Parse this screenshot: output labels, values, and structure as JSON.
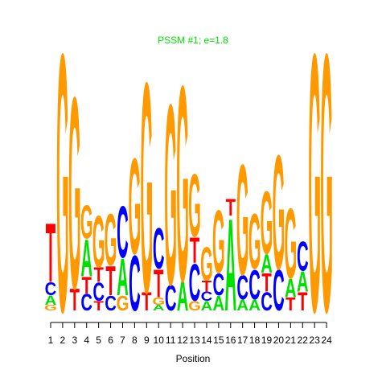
{
  "chart_data": {
    "type": "sequence-logo",
    "title": "PSSM #1; e=1.8",
    "xlabel": "Position",
    "ylabel": "",
    "x": [
      1,
      2,
      3,
      4,
      5,
      6,
      7,
      8,
      9,
      10,
      11,
      12,
      13,
      14,
      15,
      16,
      17,
      18,
      19,
      20,
      21,
      22,
      23,
      24
    ],
    "colors": {
      "A": "#00e000",
      "C": "#0000ff",
      "G": "#ff9900",
      "T": "#ff0000",
      "title": "#00e000"
    },
    "positions": [
      {
        "pos": 1,
        "letters": [
          {
            "b": "G",
            "h": 0.15
          },
          {
            "b": "A",
            "h": 0.25
          },
          {
            "b": "C",
            "h": 0.35
          },
          {
            "b": "T",
            "h": 1.6
          }
        ]
      },
      {
        "pos": 2,
        "letters": [
          {
            "b": "G",
            "h": 7.0
          }
        ]
      },
      {
        "pos": 3,
        "letters": [
          {
            "b": "T",
            "h": 0.6
          },
          {
            "b": "G",
            "h": 5.2
          }
        ]
      },
      {
        "pos": 4,
        "letters": [
          {
            "b": "C",
            "h": 0.45
          },
          {
            "b": "T",
            "h": 0.45
          },
          {
            "b": "A",
            "h": 1.0
          },
          {
            "b": "G",
            "h": 0.9
          }
        ]
      },
      {
        "pos": 5,
        "letters": [
          {
            "b": "T",
            "h": 0.25
          },
          {
            "b": "C",
            "h": 0.5
          },
          {
            "b": "T",
            "h": 0.4
          },
          {
            "b": "G",
            "h": 1.4
          }
        ]
      },
      {
        "pos": 6,
        "letters": [
          {
            "b": "C",
            "h": 0.4
          },
          {
            "b": "T",
            "h": 0.8
          },
          {
            "b": "G",
            "h": 1.4
          }
        ]
      },
      {
        "pos": 7,
        "letters": [
          {
            "b": "G",
            "h": 0.4
          },
          {
            "b": "A",
            "h": 1.0
          },
          {
            "b": "C",
            "h": 1.4
          }
        ]
      },
      {
        "pos": 8,
        "letters": [
          {
            "b": "C",
            "h": 1.5
          },
          {
            "b": "G",
            "h": 2.6
          }
        ]
      },
      {
        "pos": 9,
        "letters": [
          {
            "b": "T",
            "h": 0.5
          },
          {
            "b": "G",
            "h": 5.7
          }
        ]
      },
      {
        "pos": 10,
        "letters": [
          {
            "b": "A",
            "h": 0.15
          },
          {
            "b": "G",
            "h": 0.2
          },
          {
            "b": "T",
            "h": 0.75
          },
          {
            "b": "C",
            "h": 1.1
          }
        ]
      },
      {
        "pos": 11,
        "letters": [
          {
            "b": "C",
            "h": 0.7
          },
          {
            "b": "G",
            "h": 4.9
          }
        ]
      },
      {
        "pos": 12,
        "letters": [
          {
            "b": "A",
            "h": 0.8
          },
          {
            "b": "G",
            "h": 5.3
          }
        ]
      },
      {
        "pos": 13,
        "letters": [
          {
            "b": "G",
            "h": 0.25
          },
          {
            "b": "C",
            "h": 1.0
          },
          {
            "b": "T",
            "h": 0.7
          },
          {
            "b": "G",
            "h": 1.7
          }
        ]
      },
      {
        "pos": 14,
        "letters": [
          {
            "b": "A",
            "h": 0.25
          },
          {
            "b": "C",
            "h": 0.25
          },
          {
            "b": "T",
            "h": 0.3
          },
          {
            "b": "G",
            "h": 0.9
          }
        ]
      },
      {
        "pos": 15,
        "letters": [
          {
            "b": "A",
            "h": 0.4
          },
          {
            "b": "C",
            "h": 0.6
          },
          {
            "b": "G",
            "h": 1.7
          }
        ]
      },
      {
        "pos": 16,
        "letters": [
          {
            "b": "A",
            "h": 2.5
          },
          {
            "b": "T",
            "h": 0.45
          }
        ]
      },
      {
        "pos": 17,
        "letters": [
          {
            "b": "A",
            "h": 0.3
          },
          {
            "b": "C",
            "h": 0.65
          },
          {
            "b": "G",
            "h": 3.0
          }
        ]
      },
      {
        "pos": 18,
        "letters": [
          {
            "b": "A",
            "h": 0.3
          },
          {
            "b": "C",
            "h": 0.8
          },
          {
            "b": "G",
            "h": 1.5
          }
        ]
      },
      {
        "pos": 19,
        "letters": [
          {
            "b": "C",
            "h": 0.5
          },
          {
            "b": "T",
            "h": 0.5
          },
          {
            "b": "A",
            "h": 0.5
          },
          {
            "b": "G",
            "h": 1.7
          }
        ]
      },
      {
        "pos": 20,
        "letters": [
          {
            "b": "C",
            "h": 1.1
          },
          {
            "b": "G",
            "h": 3.1
          }
        ]
      },
      {
        "pos": 21,
        "letters": [
          {
            "b": "T",
            "h": 0.35
          },
          {
            "b": "A",
            "h": 0.5
          },
          {
            "b": "G",
            "h": 1.9
          }
        ]
      },
      {
        "pos": 22,
        "letters": [
          {
            "b": "T",
            "h": 0.5
          },
          {
            "b": "A",
            "h": 0.55
          },
          {
            "b": "C",
            "h": 0.8
          }
        ]
      },
      {
        "pos": 23,
        "letters": [
          {
            "b": "G",
            "h": 7.0
          }
        ]
      },
      {
        "pos": 24,
        "letters": [
          {
            "b": "G",
            "h": 7.0
          }
        ]
      }
    ]
  }
}
